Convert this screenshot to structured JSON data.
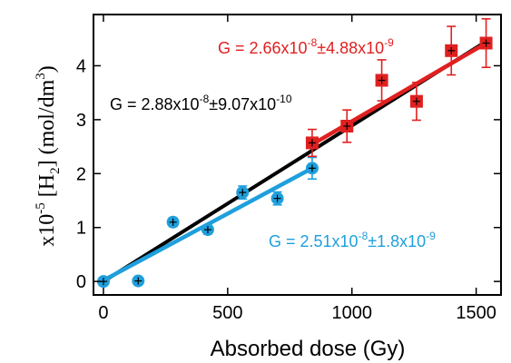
{
  "chart_data": {
    "type": "scatter",
    "xlabel": "Absorbed dose (Gy)",
    "ylabel": {
      "prefix": "x10",
      "prefix_exp": "-5",
      "species_open": " [H",
      "species_sub": "2",
      "species_close": "] ",
      "unit_open": "(mol/dm",
      "unit_exp": "3",
      "unit_close": ")"
    },
    "xlim": [
      -40,
      1600
    ],
    "ylim": [
      -0.25,
      4.95
    ],
    "xticks": [
      0,
      500,
      1000,
      1500
    ],
    "yticks": [
      0,
      1,
      2,
      3,
      4
    ],
    "grid": false,
    "series": [
      {
        "color": "#1f9fdc",
        "marker": "circle",
        "x": [
          0,
          140,
          280,
          420,
          560,
          700,
          840
        ],
        "y": [
          0.0,
          0.01,
          1.1,
          0.96,
          1.65,
          1.54,
          2.1
        ],
        "err": [
          0.05,
          0.05,
          0.08,
          0.08,
          0.12,
          0.12,
          0.2
        ],
        "fit": {
          "x": [
            0,
            840
          ],
          "y": [
            0.02,
            2.1
          ]
        },
        "annotation": {
          "text": "G = 2.51x10",
          "exp1": "-8",
          "mid": "±1.8x10",
          "exp2": "-9"
        }
      },
      {
        "color": "#e02020",
        "marker": "square",
        "x": [
          840,
          980,
          1120,
          1260,
          1400,
          1540
        ],
        "y": [
          2.57,
          2.88,
          3.73,
          3.34,
          4.28,
          4.42
        ],
        "err": [
          0.25,
          0.3,
          0.38,
          0.35,
          0.45,
          0.45
        ],
        "fit": {
          "x": [
            840,
            1540
          ],
          "y": [
            2.54,
            4.42
          ]
        },
        "annotation": {
          "text": "G = 2.66x10",
          "exp1": "-8",
          "mid": "±4.88x10",
          "exp2": "-9"
        }
      }
    ],
    "overall_fit": {
      "color": "#000000",
      "x": [
        0,
        1540
      ],
      "y": [
        0.0,
        4.45
      ],
      "annotation": {
        "text": "G = 2.88x10",
        "exp1": "-8",
        "mid": "±9.07x10",
        "exp2": "-10"
      }
    }
  }
}
